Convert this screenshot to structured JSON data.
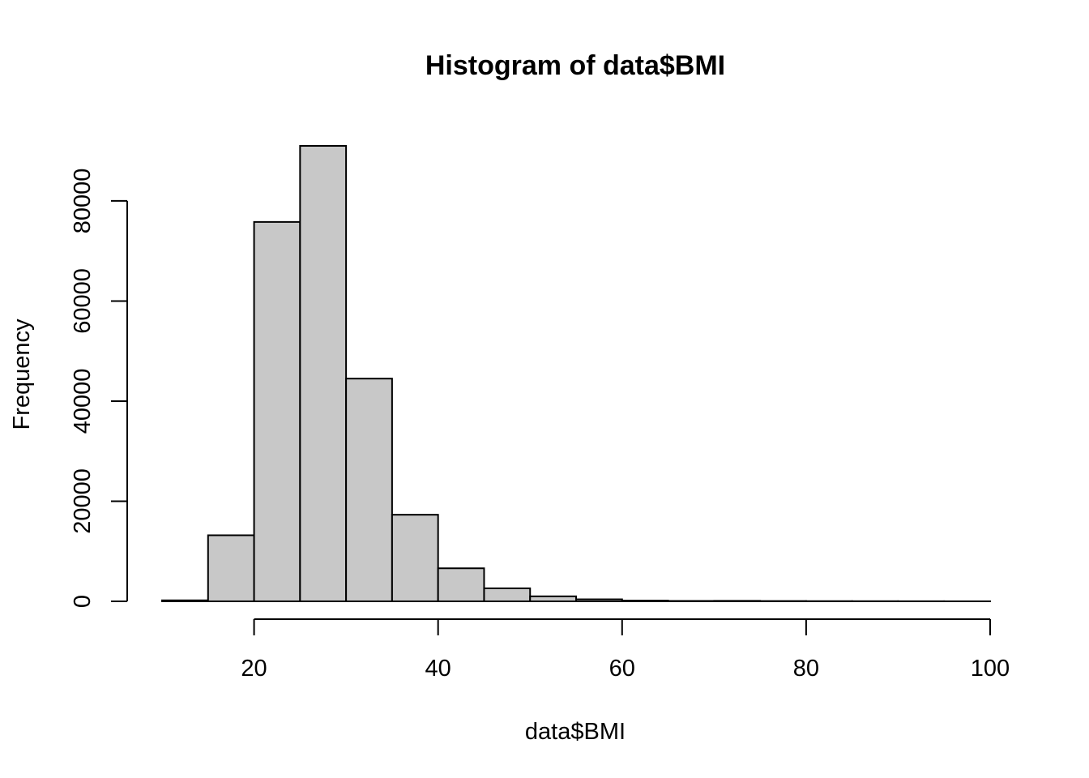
{
  "chart_data": {
    "type": "bar",
    "title": "Histogram of data$BMI",
    "xlabel": "data$BMI",
    "ylabel": "Frequency",
    "bar_color": "#c8c8c8",
    "bin_edges": [
      10,
      15,
      20,
      25,
      30,
      35,
      40,
      45,
      50,
      55,
      60,
      65,
      70,
      75,
      80,
      85,
      90,
      95,
      100
    ],
    "values": [
      200,
      13200,
      75800,
      91000,
      44500,
      17300,
      6600,
      2600,
      1000,
      400,
      150,
      80,
      100,
      60,
      40,
      30,
      20,
      10
    ],
    "xlim": [
      10,
      100
    ],
    "ylim": [
      0,
      91000
    ],
    "x_ticks": [
      20,
      40,
      60,
      80,
      100
    ],
    "x_tick_labels": [
      "20",
      "40",
      "60",
      "80",
      "100"
    ],
    "y_ticks": [
      0,
      20000,
      40000,
      60000,
      80000
    ],
    "y_tick_labels": [
      "0",
      "20000",
      "40000",
      "60000",
      "80000"
    ]
  }
}
